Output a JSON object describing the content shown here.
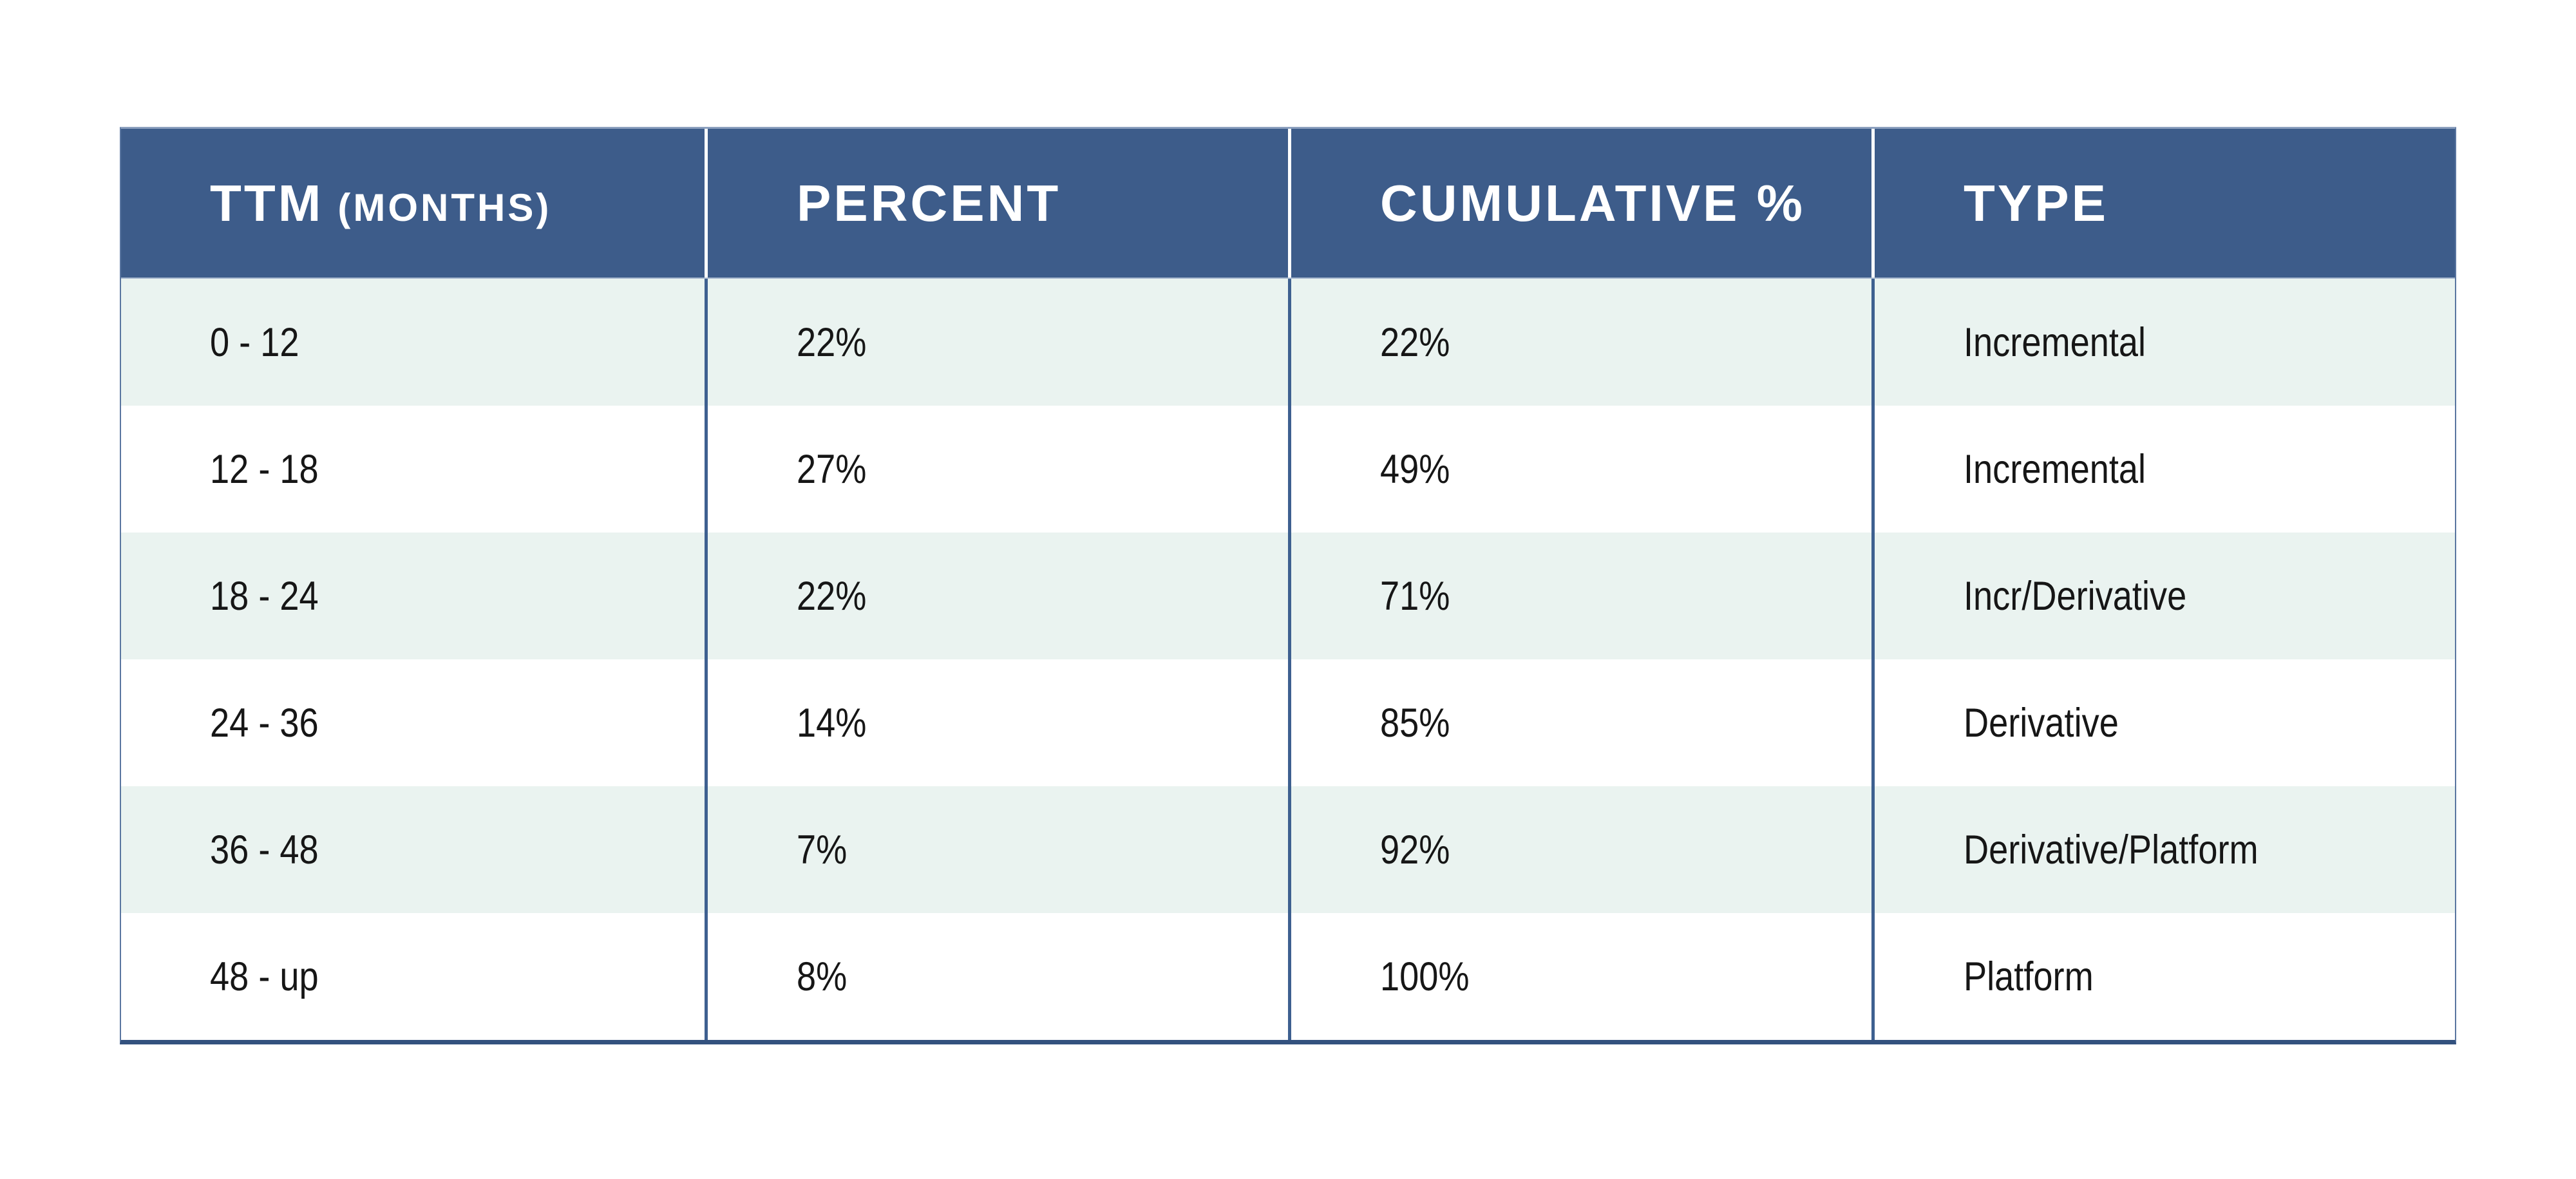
{
  "table": {
    "header": {
      "col1_label": "TTM",
      "col1_sublabel": "(MONTHS)",
      "col2_label": "PERCENT",
      "col3_label": "CUMULATIVE %",
      "col4_label": "TYPE"
    },
    "rows": [
      [
        "0 - 12",
        "22%",
        "22%",
        "Incremental"
      ],
      [
        "12 - 18",
        "27%",
        "49%",
        "Incremental"
      ],
      [
        "18 - 24",
        "22%",
        "71%",
        "Incr/Derivative"
      ],
      [
        "24 - 36",
        "14%",
        "85%",
        "Derivative"
      ],
      [
        "36 - 48",
        "7%",
        "92%",
        "Derivative/Platform"
      ],
      [
        "48 - up",
        "8%",
        "100%",
        "Platform"
      ]
    ]
  },
  "colors": {
    "header_bg": "#3D5C8A",
    "header_text": "#FFFFFF",
    "header_divider": "#FFFFFF",
    "row_alt_bg": "#EAF3F0",
    "row_bg": "#FFFFFF",
    "body_text": "#161616",
    "divider": "#3E6090",
    "outer_top": "#8CA0BE",
    "outer_side": "#5A76A0",
    "outer_bottom": "#33517E",
    "header_underline": "#AABACF",
    "page_bg": "#FFFFFF"
  },
  "chart_data": {
    "type": "table",
    "title": "",
    "columns": [
      "TTM (MONTHS)",
      "PERCENT",
      "CUMULATIVE %",
      "TYPE"
    ],
    "rows": [
      [
        "0 - 12",
        "22%",
        "22%",
        "Incremental"
      ],
      [
        "12 - 18",
        "27%",
        "49%",
        "Incremental"
      ],
      [
        "18 - 24",
        "22%",
        "71%",
        "Incr/Derivative"
      ],
      [
        "24 - 36",
        "14%",
        "85%",
        "Derivative"
      ],
      [
        "36 - 48",
        "7%",
        "92%",
        "Derivative/Platform"
      ],
      [
        "48 - up",
        "8%",
        "100%",
        "Platform"
      ]
    ],
    "percent_values": [
      22,
      27,
      22,
      14,
      7,
      8
    ],
    "cumulative_percent_values": [
      22,
      49,
      71,
      85,
      92,
      100
    ]
  }
}
